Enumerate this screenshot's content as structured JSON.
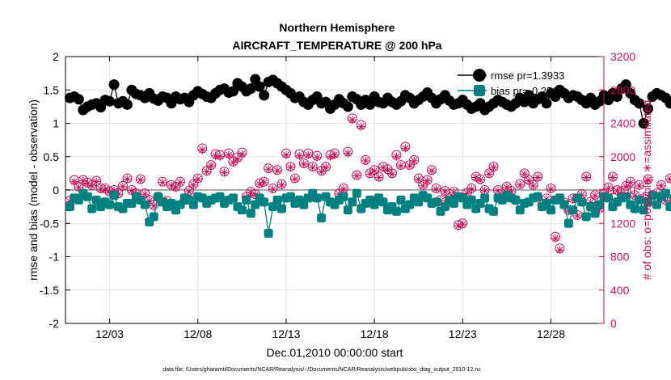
{
  "chart_data": {
    "type": "line",
    "title": "Northern Hemisphere",
    "subtitle": "AIRCRAFT_TEMPERATURE @ 200 hPa",
    "xlabel": "Dec.01,2010 00:00:00 start",
    "ylabel": "rmse and bias (model - observation)",
    "y2label": "# of obs: o=possible; ∗=assimilated",
    "footer": "data file: /Users/gharamti/Documents/NCAR/Reanalysis/~/Documents/NCAR/Reanalysis/webpub/obs_diag_output_2010-12.nc",
    "xlim": [
      0.5,
      31.0
    ],
    "ylim": [
      -2,
      2
    ],
    "y2lim": [
      0,
      3200
    ],
    "x_ticks": [
      3,
      8,
      13,
      18,
      23,
      28
    ],
    "x_tick_labels": [
      "12/03",
      "12/08",
      "12/13",
      "12/18",
      "12/23",
      "12/28"
    ],
    "y_ticks": [
      -2,
      -1.5,
      -1,
      -0.5,
      0,
      0.5,
      1,
      1.5,
      2
    ],
    "y_tick_labels": [
      "-2",
      "-1.5",
      "-1",
      "-0.5",
      "0",
      "0.5",
      "1",
      "1.5",
      "2"
    ],
    "y2_ticks": [
      0,
      400,
      800,
      1200,
      1600,
      2000,
      2400,
      2800,
      3200
    ],
    "y2_tick_labels": [
      "0",
      "400",
      "800",
      "1200",
      "1600",
      "2000",
      "2400",
      "2800",
      "3200"
    ],
    "grid": true,
    "legend_position": "top-right",
    "samples_per_day": 4,
    "x_start": 0.75,
    "series": [
      {
        "name": "rmse pr=1.3933",
        "legend_label": "rmse pr=1.3933",
        "axis": "left",
        "color": "#000000",
        "marker": "filled-circle",
        "values": [
          1.38,
          1.4,
          1.36,
          1.2,
          1.25,
          1.28,
          1.3,
          1.24,
          1.35,
          1.33,
          1.58,
          1.3,
          1.33,
          1.28,
          1.5,
          1.44,
          1.42,
          1.38,
          1.45,
          1.37,
          1.34,
          1.4,
          1.38,
          1.3,
          1.4,
          1.36,
          1.38,
          1.32,
          1.42,
          1.48,
          1.44,
          1.4,
          1.38,
          1.45,
          1.5,
          1.52,
          1.46,
          1.48,
          1.6,
          1.55,
          1.48,
          1.52,
          1.66,
          1.55,
          1.42,
          1.62,
          1.65,
          1.6,
          1.55,
          1.5,
          1.45,
          1.38,
          1.4,
          1.32,
          1.28,
          1.35,
          1.4,
          1.3,
          1.32,
          1.22,
          1.28,
          1.36,
          1.3,
          1.25,
          1.4,
          1.36,
          1.28,
          1.35,
          1.28,
          1.4,
          1.32,
          1.3,
          1.38,
          1.32,
          1.28,
          1.33,
          1.42,
          1.38,
          1.3,
          1.35,
          1.4,
          1.46,
          1.38,
          1.3,
          1.36,
          1.42,
          1.34,
          1.28,
          1.3,
          1.35,
          1.28,
          1.22,
          1.25,
          1.3,
          1.2,
          1.25,
          1.3,
          1.35,
          1.32,
          1.28,
          1.25,
          1.3,
          1.38,
          1.32,
          1.42,
          1.3,
          1.36,
          1.4,
          1.3,
          1.45,
          1.4,
          1.5,
          1.45,
          1.38,
          1.42,
          1.4,
          1.35,
          1.3,
          1.38,
          1.28,
          1.33,
          1.42,
          1.35,
          1.45,
          1.4,
          1.52,
          1.58,
          1.45,
          1.35,
          1.3,
          1.0,
          1.22,
          1.4,
          1.45,
          1.42,
          1.38,
          1.3,
          1.35,
          1.25,
          1.28,
          1.32,
          1.35,
          1.3,
          1.24
        ]
      },
      {
        "name": "bias pr=-0.2564",
        "legend_label": "bias pr=-0.2564",
        "axis": "left",
        "color": "#008080",
        "marker": "filled-square",
        "values": [
          -0.25,
          -0.12,
          -0.15,
          -0.05,
          -0.1,
          -0.28,
          -0.15,
          -0.25,
          -0.18,
          -0.22,
          -0.08,
          -0.25,
          -0.28,
          -0.2,
          -0.2,
          -0.1,
          -0.15,
          -0.22,
          -0.48,
          -0.4,
          -0.1,
          -0.18,
          -0.25,
          -0.2,
          -0.3,
          -0.22,
          -0.12,
          -0.15,
          -0.22,
          -0.1,
          -0.12,
          -0.2,
          -0.15,
          -0.12,
          -0.1,
          -0.2,
          -0.15,
          -0.12,
          -0.25,
          -0.3,
          -0.15,
          -0.35,
          -0.22,
          -0.12,
          -0.18,
          -0.65,
          -0.25,
          -0.15,
          -0.28,
          -0.12,
          -0.1,
          -0.2,
          -0.15,
          -0.22,
          -0.12,
          -0.05,
          -0.12,
          -0.42,
          -0.1,
          -0.18,
          -0.22,
          -0.15,
          -0.1,
          -0.3,
          -0.18,
          -0.05,
          -0.28,
          -0.2,
          -0.15,
          -0.22,
          -0.12,
          -0.18,
          -0.3,
          -0.25,
          -0.32,
          -0.15,
          -0.28,
          -0.22,
          -0.12,
          -0.18,
          -0.08,
          -0.12,
          -0.2,
          -0.18,
          -0.32,
          -0.25,
          -0.15,
          -0.2,
          -0.1,
          -0.12,
          -0.22,
          -0.15,
          -0.28,
          -0.2,
          -0.12,
          -0.28,
          -0.32,
          -0.12,
          -0.15,
          -0.08,
          -0.12,
          -0.15,
          -0.3,
          -0.2,
          -0.18,
          -0.12,
          -0.1,
          -0.25,
          -0.2,
          -0.3,
          -0.15,
          -0.12,
          -0.22,
          -0.5,
          -0.3,
          -0.12,
          -0.18,
          -0.4,
          -0.25,
          -0.35,
          -0.22,
          -0.1,
          -0.12,
          -0.25,
          -0.18,
          -0.12,
          -0.1,
          -0.22,
          -0.28,
          -0.15,
          -0.3,
          -0.18,
          -0.08,
          -0.22,
          -0.1,
          -0.05,
          -0.25,
          -0.12,
          -0.2,
          -0.15,
          -0.28,
          -0.12,
          -0.2,
          -0.22
        ]
      },
      {
        "name": "# of obs possible",
        "axis": "right",
        "color": "#c0135a",
        "marker": "open-circle",
        "values": [
          1470,
          1720,
          1640,
          1720,
          1690,
          1660,
          1710,
          1620,
          1620,
          1580,
          1600,
          1560,
          1650,
          1740,
          1600,
          1560,
          1730,
          1560,
          1480,
          1420,
          1520,
          1700,
          1470,
          1660,
          1640,
          1700,
          1480,
          1590,
          1670,
          1740,
          2100,
          1830,
          1900,
          2030,
          2020,
          1820,
          2040,
          1940,
          1990,
          2050,
          1520,
          1580,
          1550,
          1680,
          1700,
          1860,
          1620,
          1840,
          1670,
          2040,
          1880,
          1740,
          2030,
          1920,
          2040,
          1880,
          2010,
          1830,
          1880,
          2020,
          2040,
          1560,
          1620,
          2060,
          2460,
          1780,
          2380,
          1960,
          1800,
          1840,
          1760,
          1880,
          1850,
          1800,
          2020,
          1900,
          2120,
          1900,
          1960,
          1740,
          1660,
          1720,
          1840,
          1620,
          1480,
          1590,
          1500,
          1580,
          1180,
          1200,
          1570,
          1620,
          1760,
          1730,
          1600,
          1800,
          1880,
          1600,
          1520,
          1640,
          1590,
          1480,
          1670,
          1800,
          1720,
          1660,
          1760,
          1420,
          1500,
          1620,
          1040,
          900,
          1450,
          1360,
          1500,
          1300,
          1550,
          1760,
          1460,
          1540,
          1380,
          1560,
          1630,
          1760,
          1600,
          1520,
          1650,
          1700,
          1540,
          1660,
          1500,
          1730,
          1540,
          1560,
          1660,
          1480,
          1740,
          1470,
          1540,
          1620,
          1480,
          1740,
          1780,
          1400,
          1710,
          1460
        ]
      },
      {
        "name": "# of obs assimilated",
        "axis": "right",
        "color": "#c0135a",
        "marker": "asterisk",
        "values": [
          1460,
          1700,
          1630,
          1710,
          1680,
          1650,
          1700,
          1610,
          1610,
          1570,
          1590,
          1550,
          1640,
          1730,
          1590,
          1550,
          1720,
          1550,
          1470,
          1410,
          1510,
          1690,
          1460,
          1650,
          1630,
          1690,
          1470,
          1580,
          1660,
          1730,
          2080,
          1820,
          1890,
          2010,
          2000,
          1810,
          2020,
          1930,
          1970,
          2030,
          1510,
          1570,
          1540,
          1670,
          1690,
          1850,
          1610,
          1830,
          1660,
          2020,
          1870,
          1730,
          2010,
          1910,
          2020,
          1870,
          1990,
          1820,
          1870,
          2000,
          2020,
          1550,
          1610,
          2040,
          2440,
          1770,
          2360,
          1950,
          1790,
          1830,
          1750,
          1870,
          1840,
          1790,
          2000,
          1890,
          2100,
          1890,
          1950,
          1730,
          1650,
          1710,
          1830,
          1610,
          1470,
          1580,
          1490,
          1570,
          1170,
          1190,
          1560,
          1610,
          1750,
          1720,
          1590,
          1790,
          1870,
          1590,
          1510,
          1630,
          1580,
          1470,
          1660,
          1790,
          1710,
          1650,
          1750,
          1410,
          1490,
          1610,
          1020,
          880,
          1440,
          1350,
          1490,
          1290,
          1540,
          1750,
          1450,
          1530,
          1370,
          1550,
          1620,
          1750,
          1590,
          1510,
          1640,
          1690,
          1530,
          1650,
          1490,
          1720,
          1530,
          1550,
          1650,
          1470,
          1730,
          1460,
          1530,
          1610,
          1470,
          1730,
          1770,
          1390,
          1700,
          1450
        ]
      }
    ]
  }
}
